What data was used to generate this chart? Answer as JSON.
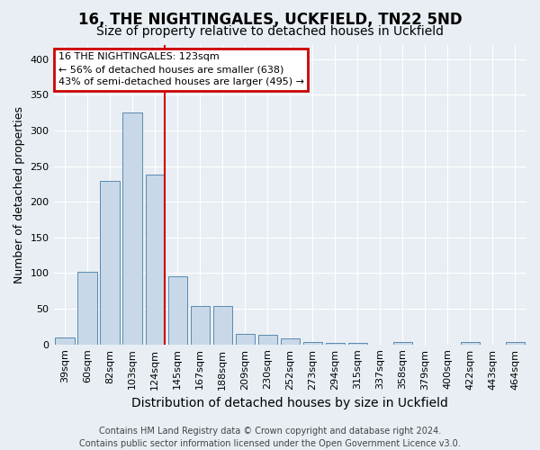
{
  "title1": "16, THE NIGHTINGALES, UCKFIELD, TN22 5ND",
  "title2": "Size of property relative to detached houses in Uckfield",
  "xlabel": "Distribution of detached houses by size in Uckfield",
  "ylabel": "Number of detached properties",
  "categories": [
    "39sqm",
    "60sqm",
    "82sqm",
    "103sqm",
    "124sqm",
    "145sqm",
    "167sqm",
    "188sqm",
    "209sqm",
    "230sqm",
    "252sqm",
    "273sqm",
    "294sqm",
    "315sqm",
    "337sqm",
    "358sqm",
    "379sqm",
    "400sqm",
    "422sqm",
    "443sqm",
    "464sqm"
  ],
  "values": [
    10,
    102,
    229,
    325,
    238,
    96,
    54,
    54,
    15,
    13,
    8,
    4,
    2,
    2,
    0,
    4,
    0,
    0,
    3,
    0,
    3
  ],
  "bar_color": "#c8d8e8",
  "bar_edge_color": "#5a8ab0",
  "red_line_index": 4,
  "annotation_line1": "16 THE NIGHTINGALES: 123sqm",
  "annotation_line2": "← 56% of detached houses are smaller (638)",
  "annotation_line3": "43% of semi-detached houses are larger (495) →",
  "annotation_box_color": "#ffffff",
  "annotation_box_edge_color": "#cc0000",
  "footer1": "Contains HM Land Registry data © Crown copyright and database right 2024.",
  "footer2": "Contains public sector information licensed under the Open Government Licence v3.0.",
  "ylim": [
    0,
    420
  ],
  "yticks": [
    0,
    50,
    100,
    150,
    200,
    250,
    300,
    350,
    400
  ],
  "bg_color": "#e8eef4",
  "grid_color": "#ffffff",
  "title1_fontsize": 12,
  "title2_fontsize": 10,
  "ylabel_fontsize": 9,
  "xlabel_fontsize": 10,
  "tick_fontsize": 8,
  "annotation_fontsize": 8,
  "footer_fontsize": 7
}
